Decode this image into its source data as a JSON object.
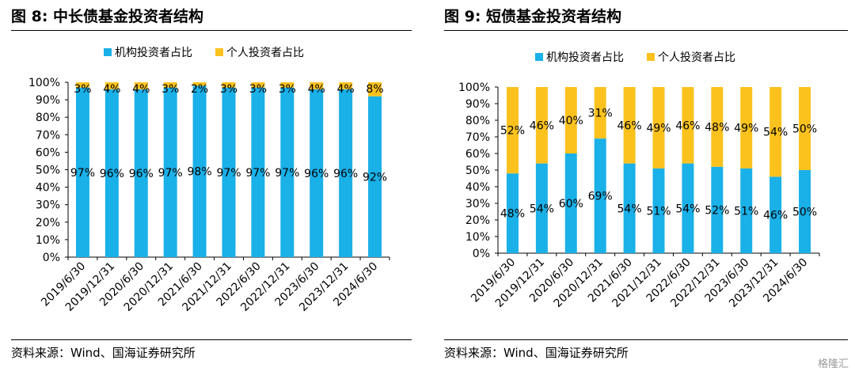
{
  "left": {
    "title": "图 8:  中长债基金投资者结构",
    "source": "资料来源：Wind、国海证券研究所"
  },
  "right": {
    "title": "图 9:  短债基金投资者结构",
    "source": "资料来源：Wind、国海证券研究所"
  },
  "watermark": "格隆汇",
  "colors": {
    "institutional": "#1ab0e8",
    "individual": "#fbc21e",
    "axis": "#000000",
    "rule": "#000000"
  },
  "chart_data": [
    {
      "type": "bar",
      "stacked": true,
      "title": "中长债基金投资者结构",
      "categories": [
        "2019/6/30",
        "2019/12/31",
        "2020/6/30",
        "2020/12/31",
        "2021/6/30",
        "2021/12/31",
        "2022/6/30",
        "2022/12/31",
        "2023/6/30",
        "2023/12/31",
        "2024/6/30"
      ],
      "series": [
        {
          "name": "机构投资者占比",
          "values": [
            97,
            96,
            96,
            97,
            98,
            97,
            97,
            97,
            96,
            96,
            92
          ],
          "labels": [
            "97%",
            "96%",
            "96%",
            "97%",
            "98%",
            "97%",
            "97%",
            "97%",
            "96%",
            "96%",
            "92%"
          ]
        },
        {
          "name": "个人投资者占比",
          "values": [
            3,
            4,
            4,
            3,
            2,
            3,
            3,
            3,
            4,
            4,
            8
          ],
          "labels": [
            "3%",
            "4%",
            "4%",
            "3%",
            "2%",
            "3%",
            "3%",
            "3%",
            "4%",
            "4%",
            "8%"
          ]
        }
      ],
      "yticks": [
        "0%",
        "10%",
        "20%",
        "30%",
        "40%",
        "50%",
        "60%",
        "70%",
        "80%",
        "90%",
        "100%"
      ],
      "ylim": [
        0,
        100
      ],
      "legend": "top-center",
      "grid": false
    },
    {
      "type": "bar",
      "stacked": true,
      "title": "短债基金投资者结构",
      "categories": [
        "2019/6/30",
        "2019/12/31",
        "2020/6/30",
        "2020/12/31",
        "2021/6/30",
        "2021/12/31",
        "2022/6/30",
        "2022/12/31",
        "2023/6/30",
        "2023/12/31",
        "2024/6/30"
      ],
      "series": [
        {
          "name": "机构投资者占比",
          "values": [
            48,
            54,
            60,
            69,
            54,
            51,
            54,
            52,
            51,
            46,
            50
          ],
          "labels": [
            "48%",
            "54%",
            "60%",
            "69%",
            "54%",
            "51%",
            "54%",
            "52%",
            "51%",
            "46%",
            "50%"
          ]
        },
        {
          "name": "个人投资者占比",
          "values": [
            52,
            46,
            40,
            31,
            46,
            49,
            46,
            48,
            49,
            54,
            50
          ],
          "labels": [
            "52%",
            "46%",
            "40%",
            "31%",
            "46%",
            "49%",
            "46%",
            "48%",
            "49%",
            "54%",
            "50%"
          ]
        }
      ],
      "yticks": [
        "0%",
        "10%",
        "20%",
        "30%",
        "40%",
        "50%",
        "60%",
        "70%",
        "80%",
        "90%",
        "100%"
      ],
      "ylim": [
        0,
        100
      ],
      "legend": "top-center",
      "grid": false
    }
  ]
}
